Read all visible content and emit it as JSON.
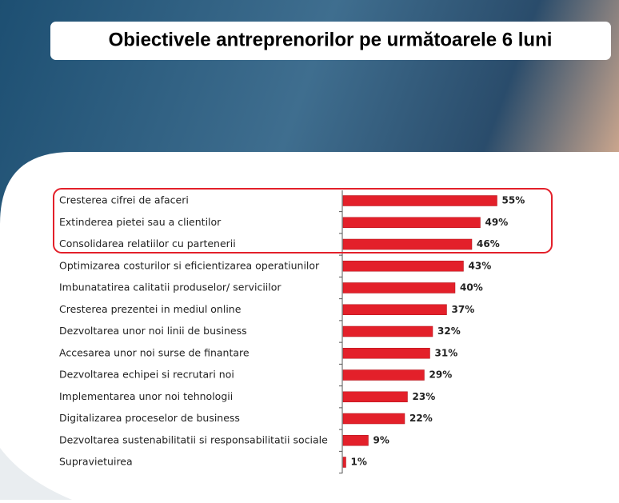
{
  "chart_data": {
    "type": "bar",
    "orientation": "horizontal",
    "title": "Obiectivele antreprenorilor pe următoarele 6 luni",
    "categories": [
      "Cresterea cifrei de afaceri",
      "Extinderea pietei sau a clientilor",
      "Consolidarea relatiilor cu partenerii",
      "Optimizarea costurilor si eficientizarea operatiunilor",
      "Imbunatatirea calitatii produselor/ serviciilor",
      "Cresterea prezentei in mediul online",
      "Dezvoltarea unor noi linii de business",
      "Accesarea unor noi surse de finantare",
      "Dezvoltarea echipei si recrutari noi",
      "Implementarea unor noi tehnologii",
      "Digitalizarea proceselor de business",
      "Dezvoltarea sustenabilitatii si responsabilitatii sociale",
      "Supravietuirea"
    ],
    "values": [
      55,
      49,
      46,
      43,
      40,
      37,
      32,
      31,
      29,
      23,
      22,
      9,
      1
    ],
    "value_labels": [
      "55%",
      "49%",
      "46%",
      "43%",
      "40%",
      "37%",
      "32%",
      "31%",
      "29%",
      "23%",
      "22%",
      "9%",
      "1%"
    ],
    "color": "#e3202a"
  }
}
